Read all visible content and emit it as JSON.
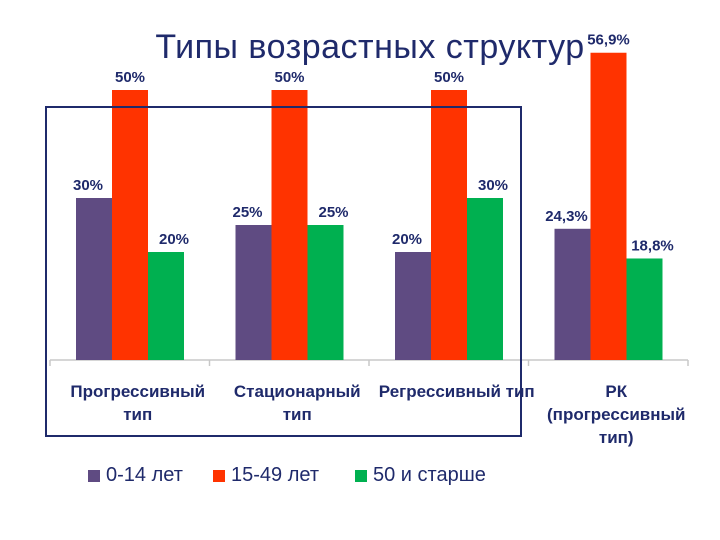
{
  "title": "Типы возрастных структур",
  "chart_data": {
    "type": "bar",
    "categories": [
      [
        "Прогрессивный",
        "тип"
      ],
      [
        "Стационарный",
        "тип"
      ],
      [
        "Регрессивный тип"
      ],
      [
        "РК",
        "(прогрессивный",
        "тип)"
      ]
    ],
    "series": [
      {
        "name": "0-14 лет",
        "color": "#5f4b82",
        "values": [
          30,
          25,
          20,
          24.3
        ],
        "labels": [
          "30%",
          "25%",
          "20%",
          "24,3%"
        ]
      },
      {
        "name": "15-49 лет",
        "color": "#ff3300",
        "values": [
          50,
          50,
          50,
          56.9
        ],
        "labels": [
          "50%",
          "50%",
          "50%",
          "56,9%"
        ]
      },
      {
        "name": "50 и старше",
        "color": "#00b050",
        "values": [
          20,
          25,
          30,
          18.8
        ],
        "labels": [
          "20%",
          "25%",
          "30%",
          "18,8%"
        ]
      }
    ],
    "ylim": [
      0,
      60
    ],
    "grid": false,
    "legend": "bottom"
  }
}
